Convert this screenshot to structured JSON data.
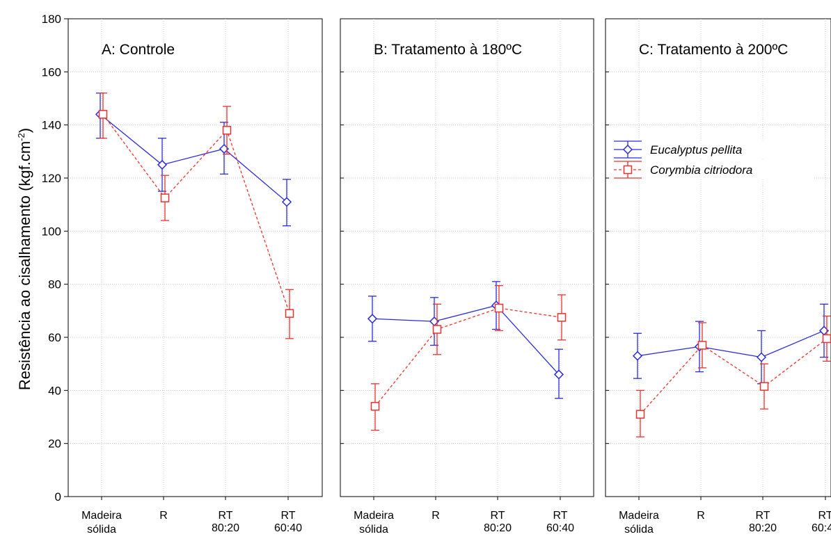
{
  "chart_data": {
    "type": "line",
    "ylabel_main": "Resistência ao cisalhamento (kgf.cm",
    "ylabel_sup": "-2",
    "ylabel_close": ")",
    "ylim": [
      0,
      180
    ],
    "yticks": [
      0,
      20,
      40,
      60,
      80,
      100,
      120,
      140,
      160,
      180
    ],
    "grid": true,
    "categories": [
      [
        "Madeira",
        "sólida"
      ],
      [
        "R"
      ],
      [
        "RT",
        "80:20"
      ],
      [
        "RT",
        "60:40"
      ]
    ],
    "legend": {
      "placement": "panel-C-upper-middle"
    },
    "series_styles": [
      {
        "name": "Eucalyptus pellita",
        "color": "#2b2bd9",
        "marker": "diamond",
        "line": "solid"
      },
      {
        "name": "Corymbia citriodora",
        "color": "#e8332e",
        "marker": "square",
        "line": "dashed"
      }
    ],
    "panels": [
      {
        "title": "A: Controle",
        "series": [
          {
            "name": "Eucalyptus pellita",
            "values": [
              144,
              125,
              131,
              111
            ],
            "ci_low": [
              135,
              115,
              121.5,
              102
            ],
            "ci_high": [
              152,
              135,
              141,
              119.5
            ]
          },
          {
            "name": "Corymbia citriodora",
            "values": [
              144,
              112.5,
              138,
              69
            ],
            "ci_low": [
              135,
              104,
              129,
              59.5
            ],
            "ci_high": [
              152,
              121,
              147,
              78
            ]
          }
        ]
      },
      {
        "title": "B: Tratamento à 180ºC",
        "series": [
          {
            "name": "Eucalyptus pellita",
            "values": [
              67,
              66,
              72,
              46
            ],
            "ci_low": [
              58.5,
              57,
              63,
              37
            ],
            "ci_high": [
              75.5,
              75,
              81,
              55.5
            ]
          },
          {
            "name": "Corymbia citriodora",
            "values": [
              34,
              63,
              71,
              67.5
            ],
            "ci_low": [
              25,
              53.5,
              62.5,
              59
            ],
            "ci_high": [
              42.5,
              72.5,
              79.5,
              76
            ]
          }
        ]
      },
      {
        "title": "C: Tratamento à 200ºC",
        "series": [
          {
            "name": "Eucalyptus pellita",
            "values": [
              53,
              56.5,
              52.5,
              62.5
            ],
            "ci_low": [
              44.5,
              47,
              42.5,
              52.5
            ],
            "ci_high": [
              61.5,
              66,
              62.5,
              72.5
            ]
          },
          {
            "name": "Corymbia citriodora",
            "values": [
              31,
              57,
              41.5,
              59.5
            ],
            "ci_low": [
              22.5,
              48.5,
              33,
              51
            ],
            "ci_high": [
              40,
              65.5,
              50,
              68
            ]
          }
        ]
      }
    ]
  }
}
